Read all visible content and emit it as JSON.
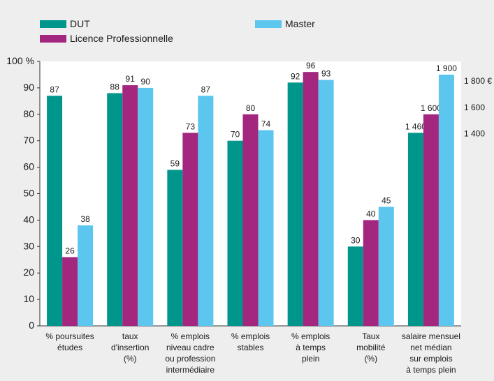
{
  "chart_data": [
    {
      "type": "bar",
      "categories": [
        "% poursuites\nétudes",
        "taux\nd'insertion\n(%)",
        "% emplois\nniveau cadre\nou profession\nintermédiaire",
        "% emplois\nstables",
        "% emplois\nà temps\nplein",
        "Taux\nmobilité\n(%)"
      ],
      "series": [
        {
          "name": "DUT",
          "color": "#00968c",
          "values": [
            87,
            88,
            59,
            70,
            92,
            30
          ]
        },
        {
          "name": "Licence Professionnelle",
          "color": "#a3267f",
          "values": [
            26,
            91,
            73,
            80,
            96,
            40
          ]
        },
        {
          "name": "Master",
          "color": "#5cc6ef",
          "values": [
            38,
            90,
            87,
            74,
            93,
            45
          ]
        }
      ],
      "ylim": [
        0,
        100
      ],
      "yticks": [
        0,
        10,
        20,
        30,
        40,
        50,
        60,
        70,
        80,
        90,
        {
          "value": 100,
          "label": "100 %"
        }
      ],
      "legend": "top"
    },
    {
      "type": "bar",
      "categories": [
        "salaire mensuel\nnet médian\nsur emplois\nà temps plein"
      ],
      "series": [
        {
          "color": "#00968c",
          "axis": "y2",
          "values": [
            1460
          ],
          "value_labels": [
            "1 460"
          ]
        },
        {
          "color": "#a3267f",
          "axis": "y2",
          "values": [
            1600
          ],
          "value_labels": [
            "1 600"
          ]
        },
        {
          "color": "#5cc6ef",
          "axis": "y2",
          "values": [
            1900
          ],
          "value_labels": [
            "1 900"
          ]
        }
      ],
      "y2lim": [
        0,
        2000
      ],
      "y2ticks": [
        {
          "value": 1400,
          "label": "1 400"
        },
        {
          "value": 1600,
          "label": "1 600"
        },
        {
          "value": 1800,
          "label": "1 800 €"
        }
      ]
    }
  ]
}
